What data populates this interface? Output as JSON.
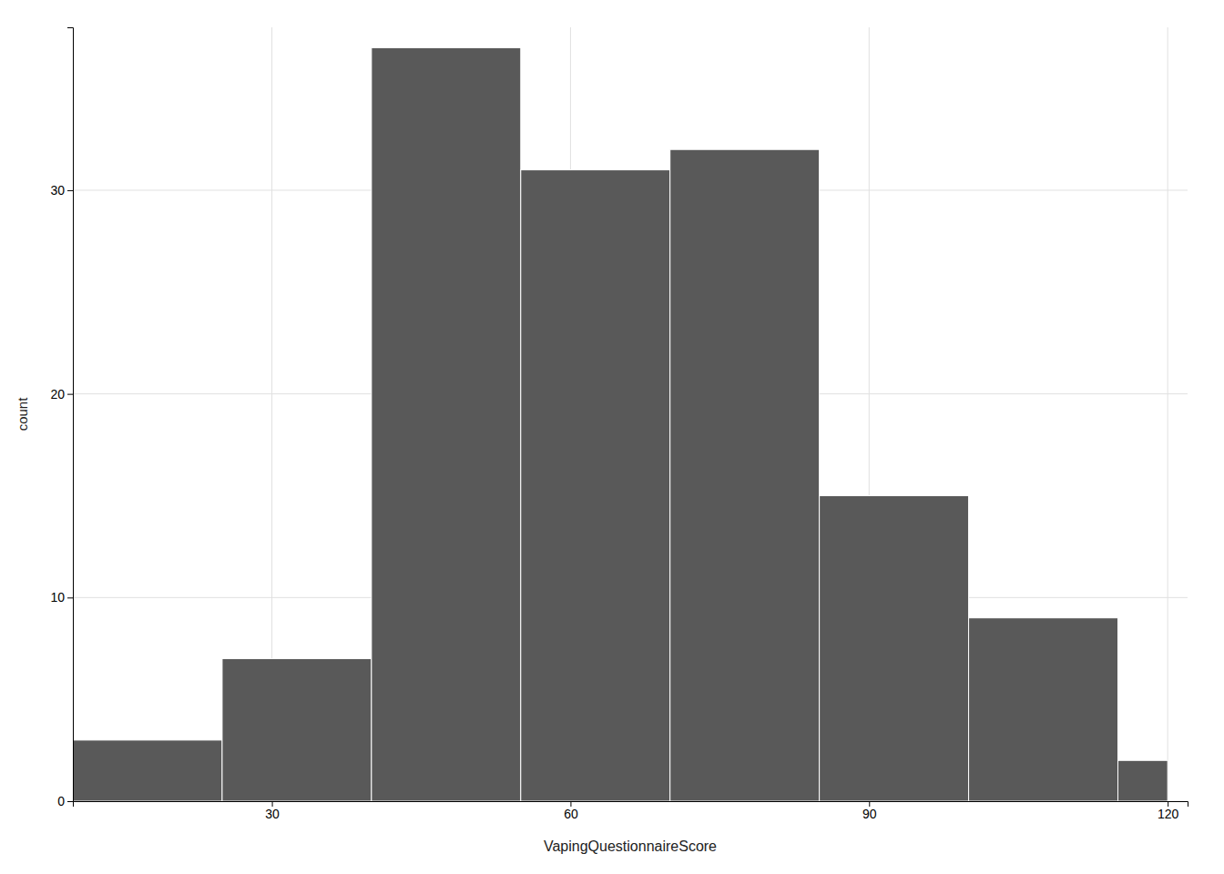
{
  "chart_data": {
    "type": "histogram",
    "bins": [
      10,
      25,
      40,
      55,
      70,
      85,
      100,
      115,
      120
    ],
    "values": [
      3,
      7,
      37,
      31,
      32,
      15,
      9,
      2
    ],
    "color": "#595959",
    "xlabel": "VapingQuestionnaireScore",
    "ylabel": "count",
    "xlim": [
      10,
      122
    ],
    "ylim": [
      0,
      38
    ],
    "xticks": [
      30,
      60,
      90,
      120
    ],
    "yticks": [
      0,
      10,
      20,
      30
    ],
    "grid": true
  }
}
